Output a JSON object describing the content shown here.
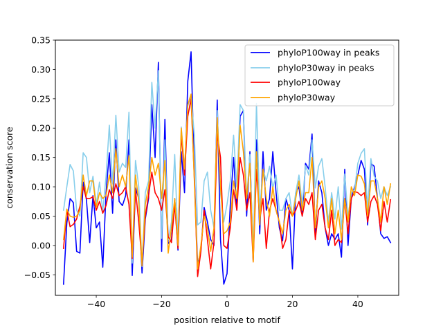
{
  "chart_data": {
    "type": "line",
    "title": "",
    "xlabel": "position relative to motif",
    "ylabel": "conservation score",
    "xlim": [
      -52.5,
      52.5
    ],
    "ylim": [
      -0.085,
      0.35
    ],
    "xticks": [
      -40,
      -20,
      0,
      20,
      40
    ],
    "xtick_labels": [
      "−40",
      "−20",
      "0",
      "20",
      "40"
    ],
    "yticks": [
      -0.05,
      0.0,
      0.05,
      0.1,
      0.15,
      0.2,
      0.25,
      0.3,
      0.35
    ],
    "ytick_labels": [
      "−0.05",
      "0.00",
      "0.05",
      "0.10",
      "0.15",
      "0.20",
      "0.25",
      "0.30",
      "0.35"
    ],
    "legend_position": "top-right",
    "x_start": -50,
    "x_end": 50,
    "series": [
      {
        "name": "phyloP100way in peaks",
        "color": "#0000ff",
        "values": [
          -0.066,
          0.038,
          0.08,
          0.073,
          -0.01,
          -0.013,
          0.108,
          0.078,
          0.005,
          0.085,
          0.03,
          0.04,
          -0.037,
          0.09,
          0.158,
          0.055,
          0.18,
          0.075,
          0.068,
          0.085,
          0.18,
          -0.051,
          0.098,
          0.08,
          -0.047,
          0.045,
          0.08,
          0.24,
          0.15,
          0.312,
          -0.01,
          0.215,
          0.003,
          0.01,
          0.08,
          -0.008,
          0.16,
          0.09,
          0.28,
          0.33,
          0.12,
          -0.033,
          -0.008,
          0.065,
          0.04,
          0.01,
          0.0,
          0.248,
          0.01,
          -0.066,
          -0.048,
          0.07,
          0.15,
          0.06,
          0.22,
          0.23,
          0.05,
          0.16,
          -0.025,
          0.18,
          0.02,
          0.16,
          0.06,
          0.08,
          0.16,
          0.09,
          0.03,
          0.008,
          0.08,
          0.06,
          -0.04,
          0.09,
          0.1,
          0.05,
          0.14,
          0.13,
          0.19,
          0.02,
          0.11,
          0.09,
          0.03,
          0.0,
          0.02,
          0.01,
          0.02,
          -0.02,
          0.13,
          0.0,
          0.08,
          0.1,
          0.12,
          0.145,
          0.13,
          0.035,
          0.14,
          0.135,
          0.08,
          0.02,
          0.012,
          0.015,
          0.005
        ],
        "label_shown": true
      },
      {
        "name": "phyloP30way in peaks",
        "color": "#87ceeb",
        "values": [
          0.06,
          0.1,
          0.138,
          0.127,
          0.06,
          0.05,
          0.158,
          0.15,
          0.09,
          0.118,
          0.07,
          0.108,
          0.058,
          0.118,
          0.205,
          0.105,
          0.222,
          0.125,
          0.14,
          0.133,
          0.227,
          -0.03,
          0.145,
          0.1,
          -0.036,
          0.09,
          0.11,
          0.278,
          0.2,
          0.298,
          0.012,
          0.18,
          0.01,
          0.04,
          0.155,
          0.005,
          0.202,
          0.13,
          0.238,
          0.255,
          0.188,
          0.035,
          0.04,
          0.11,
          0.125,
          0.06,
          0.03,
          0.23,
          0.09,
          0.04,
          0.07,
          0.11,
          0.188,
          0.1,
          0.24,
          0.23,
          0.08,
          0.155,
          -0.02,
          0.242,
          0.06,
          0.13,
          0.11,
          0.135,
          0.098,
          0.12,
          0.06,
          0.06,
          0.08,
          0.09,
          0.05,
          0.09,
          0.12,
          0.07,
          0.136,
          0.12,
          0.18,
          0.098,
          0.135,
          0.148,
          0.1,
          0.04,
          0.09,
          0.045,
          0.1,
          0.028,
          0.122,
          0.048,
          0.09,
          0.095,
          0.14,
          0.157,
          0.165,
          0.06,
          0.148,
          0.118,
          0.11,
          0.08,
          0.1,
          0.085,
          0.1
        ],
        "label_shown": true
      },
      {
        "name": "phyloP100way",
        "color": "#ff0000",
        "values": [
          -0.005,
          0.06,
          0.032,
          0.036,
          0.045,
          0.067,
          0.1,
          0.08,
          0.08,
          0.083,
          0.06,
          0.075,
          0.055,
          0.068,
          0.095,
          0.08,
          0.105,
          0.085,
          0.09,
          0.1,
          0.07,
          -0.022,
          0.095,
          0.04,
          -0.03,
          0.05,
          0.085,
          0.125,
          0.09,
          0.08,
          0.06,
          0.095,
          0.015,
          0.005,
          0.07,
          -0.005,
          0.19,
          0.12,
          0.22,
          0.25,
          0.115,
          -0.053,
          -0.01,
          0.06,
          0.01,
          -0.04,
          0.005,
          0.19,
          0.15,
          0.0,
          -0.005,
          0.03,
          0.095,
          0.06,
          0.15,
          0.12,
          0.06,
          0.09,
          -0.028,
          0.13,
          0.045,
          0.08,
          -0.005,
          0.06,
          0.08,
          0.06,
          0.04,
          -0.005,
          0.01,
          0.06,
          0.05,
          0.06,
          0.075,
          0.05,
          0.08,
          0.07,
          0.09,
          0.01,
          0.06,
          0.07,
          0.03,
          0.01,
          0.06,
          0.0,
          0.01,
          0.005,
          0.08,
          0.02,
          0.08,
          0.092,
          0.09,
          0.085,
          0.09,
          0.04,
          0.075,
          0.085,
          0.07,
          0.025,
          0.075,
          0.04,
          0.078
        ],
        "label_shown": true
      },
      {
        "name": "phyloP30way",
        "color": "#ffa500",
        "values": [
          0.01,
          0.062,
          0.05,
          0.048,
          0.05,
          0.06,
          0.12,
          0.085,
          0.11,
          0.11,
          0.065,
          0.09,
          0.08,
          0.085,
          0.12,
          0.09,
          0.165,
          0.1,
          0.12,
          0.1,
          0.153,
          -0.02,
          0.12,
          0.075,
          -0.035,
          0.07,
          0.1,
          0.15,
          0.12,
          0.14,
          0.08,
          0.145,
          -0.013,
          0.03,
          0.08,
          0.0,
          0.2,
          0.13,
          0.24,
          0.258,
          0.11,
          -0.04,
          0.0,
          0.05,
          0.03,
          -0.01,
          0.03,
          0.218,
          0.1,
          0.02,
          0.025,
          0.04,
          0.11,
          0.08,
          0.205,
          0.16,
          0.08,
          0.14,
          -0.028,
          0.16,
          0.035,
          0.13,
          0.08,
          0.05,
          0.1,
          0.06,
          0.04,
          0.02,
          0.06,
          0.07,
          0.05,
          0.08,
          0.11,
          0.06,
          0.09,
          0.09,
          0.15,
          0.03,
          0.1,
          0.11,
          0.08,
          0.03,
          0.08,
          0.02,
          0.06,
          0.01,
          0.08,
          0.04,
          0.1,
          0.085,
          0.12,
          0.118,
          0.105,
          0.05,
          0.11,
          0.11,
          0.08,
          0.04,
          0.1,
          0.07,
          0.105
        ],
        "label_shown": true
      }
    ]
  }
}
